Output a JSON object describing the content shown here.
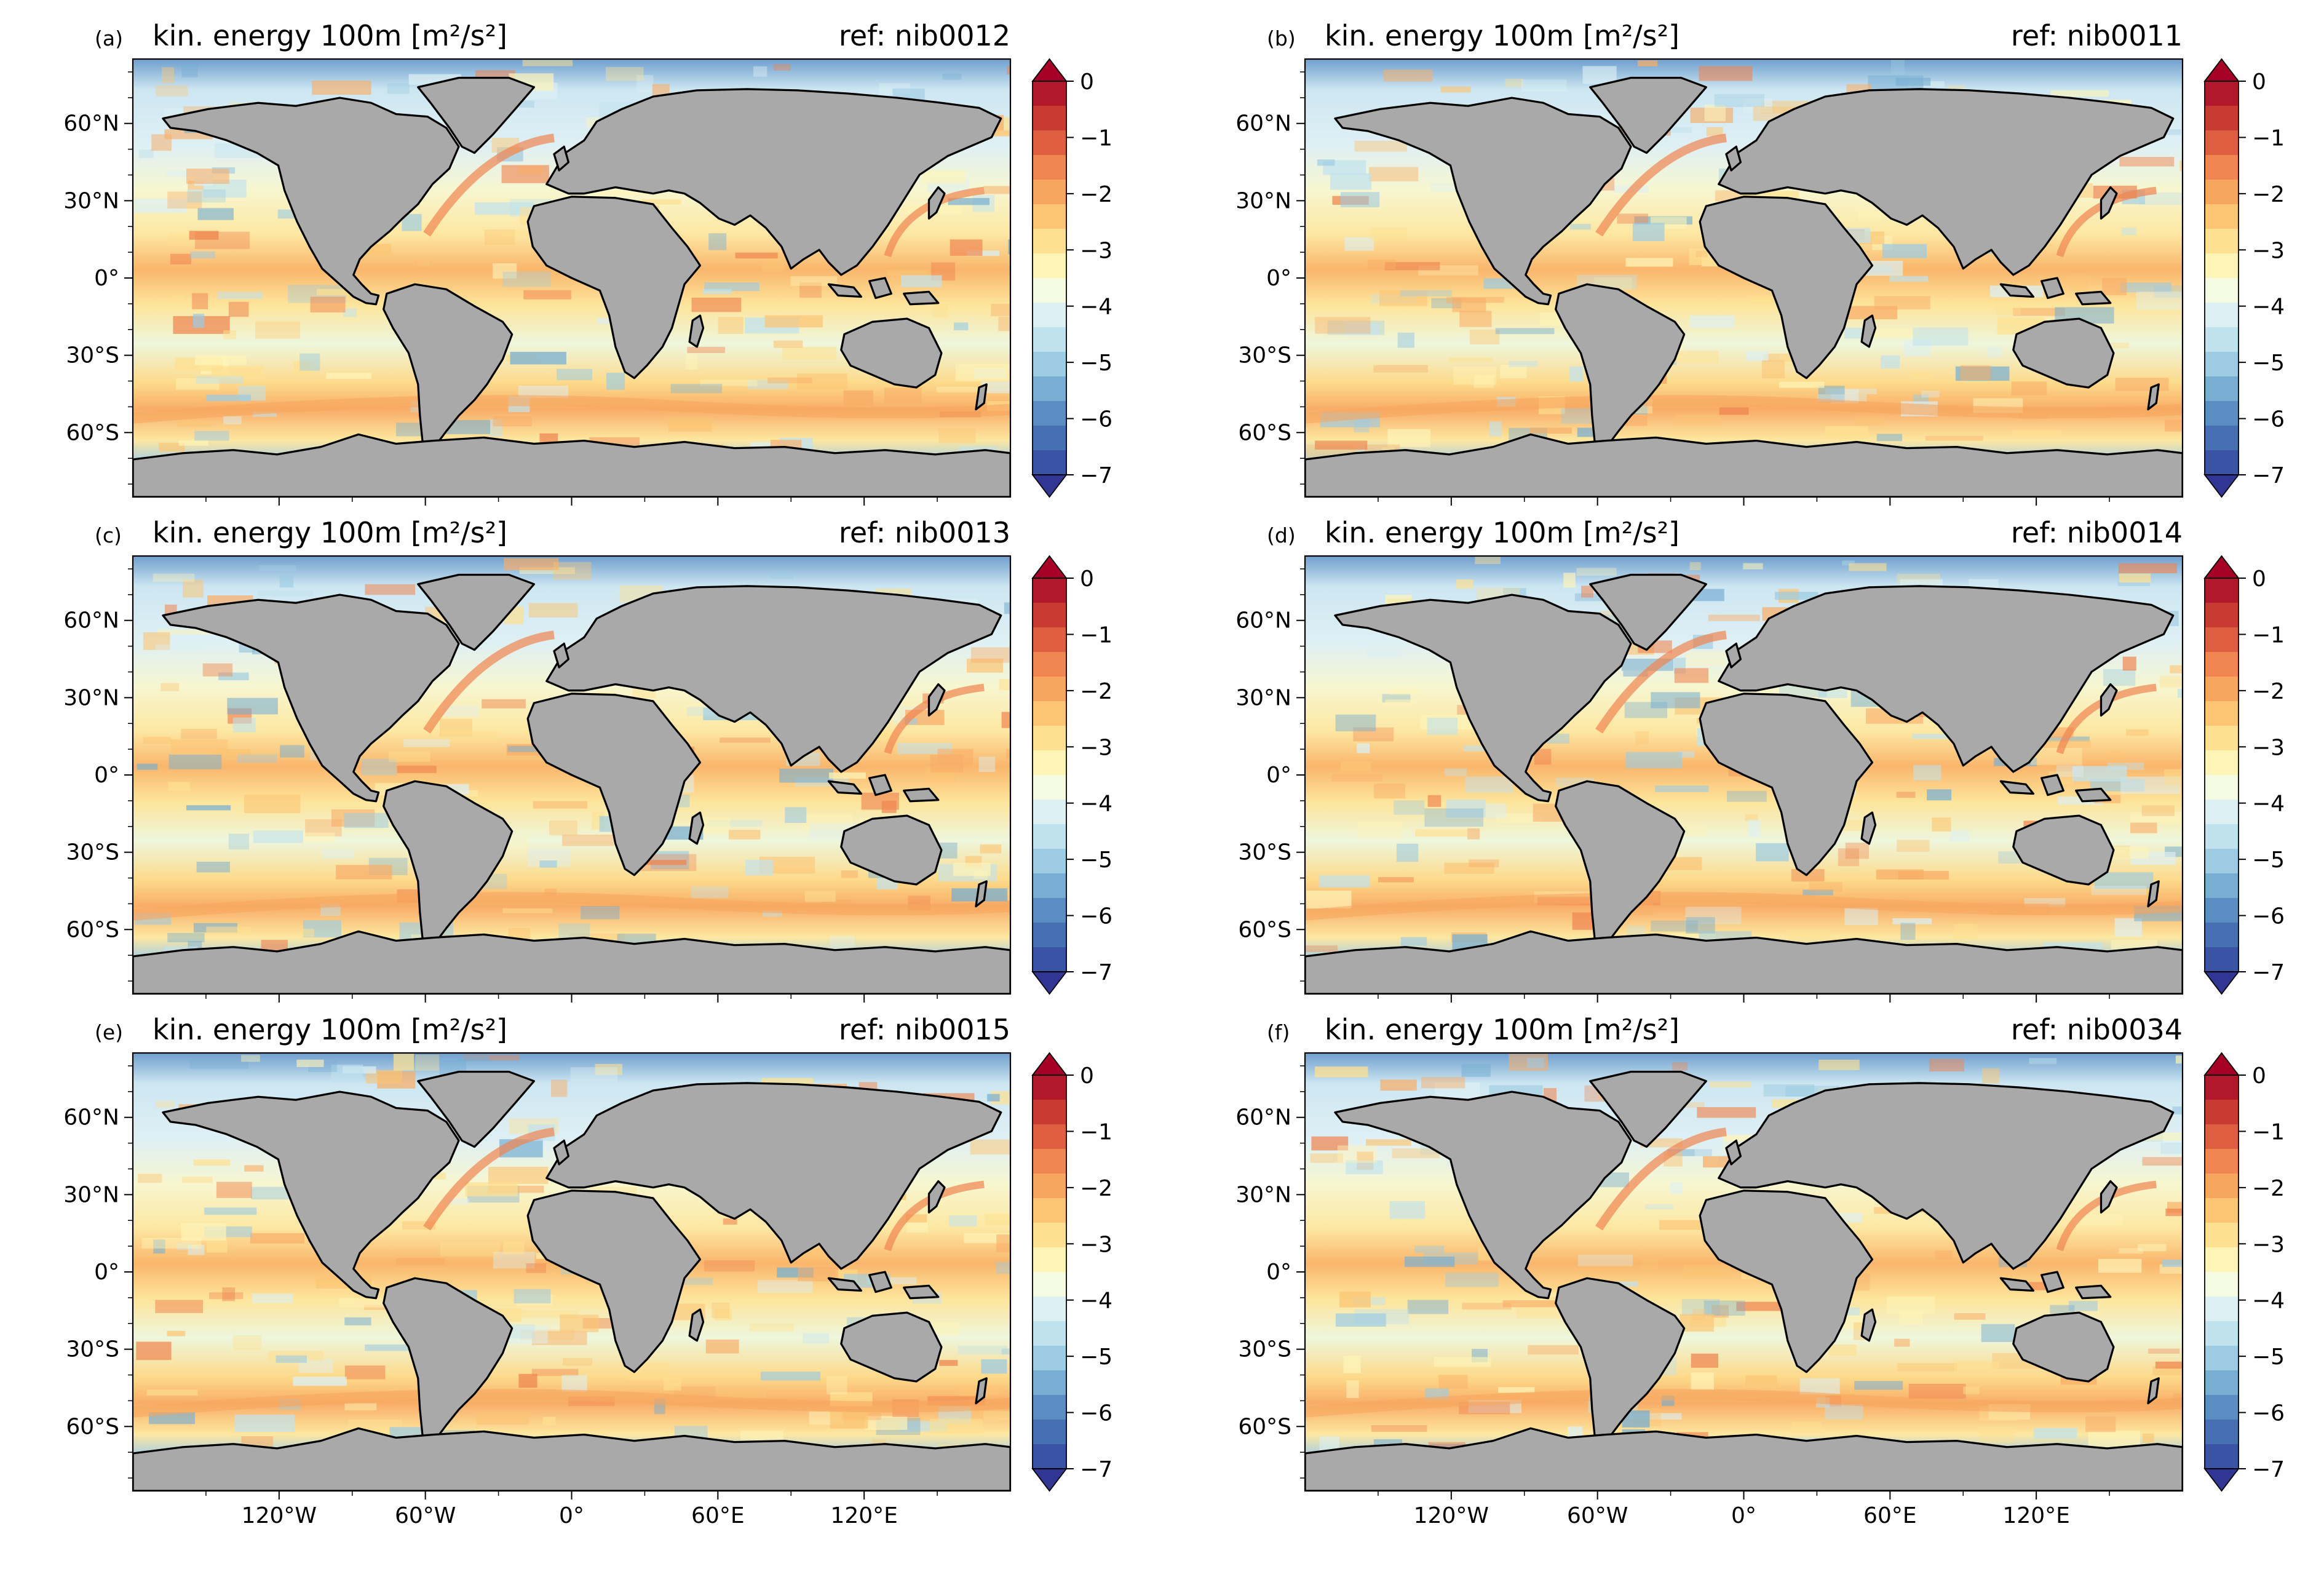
{
  "figure": {
    "colorbar": {
      "ticks": [
        "0",
        "−1",
        "−2",
        "−3",
        "−4",
        "−5",
        "−6",
        "−7"
      ],
      "colors_top_to_bottom": [
        "#b2182b",
        "#c93a32",
        "#dd5f3f",
        "#ef8550",
        "#f7a65f",
        "#fbc574",
        "#fde090",
        "#fef4b8",
        "#f4fbe0",
        "#dcf0f4",
        "#c0e2ee",
        "#9ccbe2",
        "#77aed2",
        "#5a8dc2",
        "#4770b3",
        "#3a53a4"
      ],
      "under_color": "#313695",
      "over_color": "#a50026"
    },
    "colors": {
      "land": "#a9a9a9",
      "ocean_base": "#cfe6ef",
      "coast": "#000000"
    },
    "lat_tick_labels": [
      "60°N",
      "30°N",
      "0°",
      "30°S",
      "60°S"
    ],
    "lon_tick_labels": [
      "120°W",
      "60°W",
      "0°",
      "60°E",
      "120°E"
    ],
    "panels": [
      {
        "letter": "(a)",
        "title": "kin. energy 100m [m²/s²]",
        "ref": "ref: nib0012"
      },
      {
        "letter": "(b)",
        "title": "kin. energy 100m [m²/s²]",
        "ref": "ref: nib0011"
      },
      {
        "letter": "(c)",
        "title": "kin. energy 100m [m²/s²]",
        "ref": "ref: nib0013"
      },
      {
        "letter": "(d)",
        "title": "kin. energy 100m [m²/s²]",
        "ref": "ref: nib0014"
      },
      {
        "letter": "(e)",
        "title": "kin. energy 100m [m²/s²]",
        "ref": "ref: nib0015"
      },
      {
        "letter": "(f)",
        "title": "kin. energy 100m [m²/s²]",
        "ref": "ref: nib0034"
      }
    ]
  }
}
